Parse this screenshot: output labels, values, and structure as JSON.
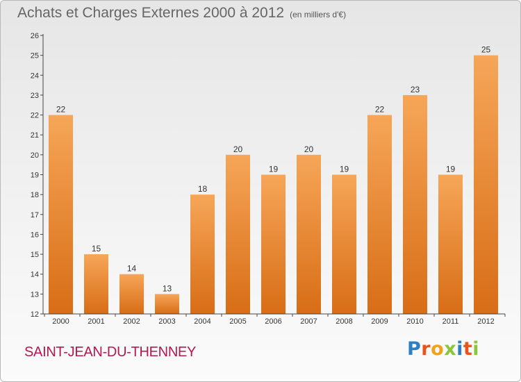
{
  "title": "Achats et Charges Externes 2000 à 2012",
  "subtitle": "(en milliers d'€)",
  "location": "SAINT-JEAN-DU-THENNEY",
  "brand": {
    "text": "Proxiti",
    "letter_colors": [
      "#2f7fc4",
      "#e8541c",
      "#f2a11b",
      "#8cc43c",
      "#2f7fc4",
      "#e8541c",
      "#8cc43c"
    ]
  },
  "colors": {
    "bar_light": "#f6a658",
    "bar_dark": "#d86d16",
    "axis": "#444444"
  },
  "chart_data": {
    "type": "bar",
    "title": "Achats et Charges Externes 2000 à 2012",
    "xlabel": "",
    "ylabel": "",
    "categories": [
      "2000",
      "2001",
      "2002",
      "2003",
      "2004",
      "2005",
      "2006",
      "2007",
      "2008",
      "2009",
      "2010",
      "2011",
      "2012"
    ],
    "values": [
      22,
      15,
      14,
      13,
      18,
      20,
      19,
      20,
      19,
      22,
      23,
      19,
      25
    ],
    "ylim": [
      12,
      26
    ],
    "yticks": [
      12,
      13,
      14,
      15,
      16,
      17,
      18,
      19,
      20,
      21,
      22,
      23,
      24,
      25,
      26
    ],
    "grid": false,
    "legend": "none"
  }
}
